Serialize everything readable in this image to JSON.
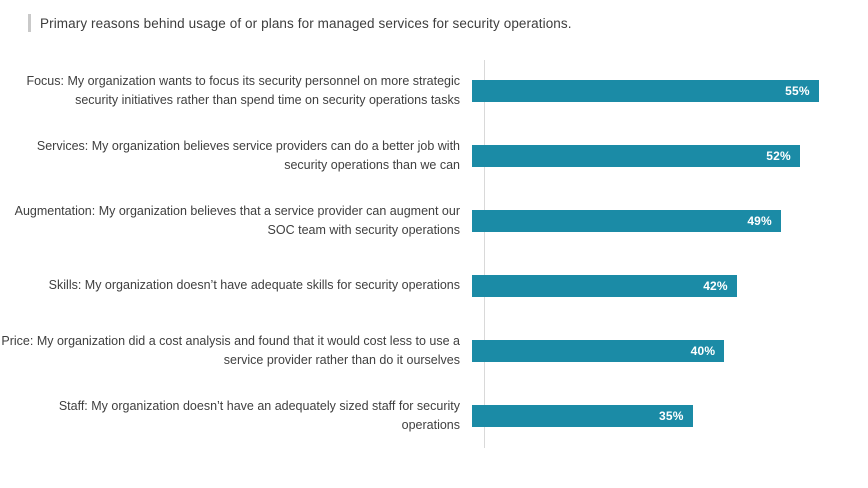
{
  "page": {
    "title": "Primary reasons behind usage of or plans for managed services for security operations.",
    "accent_bar_color": "#c9c9c9"
  },
  "chart_data": {
    "type": "bar",
    "orientation": "horizontal",
    "title": "Primary reasons behind usage of or plans for managed services for security operations.",
    "categories": [
      "Focus: My organization wants to focus its security personnel on more strategic security initiatives rather than spend time on security operations tasks",
      "Services: My organization believes service providers can do a better job with security operations than we can",
      "Augmentation: My organization believes that a service provider can augment our SOC team with security operations",
      "Skills: My organization doesn’t have adequate skills for security operations",
      "Price: My organization did a cost analysis and found that it would cost less to use a service provider rather than do it ourselves",
      "Staff: My organization doesn’t have an adequately sized staff for security operations"
    ],
    "values": [
      55,
      52,
      49,
      42,
      40,
      35
    ],
    "value_labels": [
      "55%",
      "52%",
      "49%",
      "42%",
      "40%",
      "35%"
    ],
    "xlim": [
      0,
      59
    ],
    "xlabel": "",
    "ylabel": "",
    "grid": false,
    "legend": false,
    "bar_color": "#1b8ba6",
    "value_label_color": "#ffffff",
    "axis_line_color": "#d9d9d9"
  }
}
